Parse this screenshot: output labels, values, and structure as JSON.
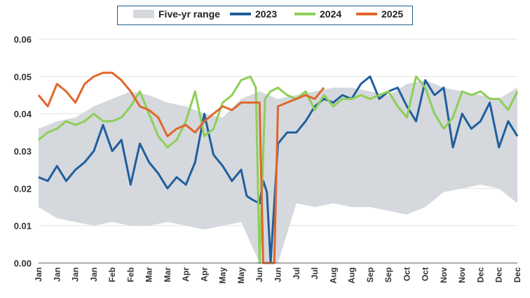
{
  "chart_data": {
    "type": "line",
    "title": "",
    "xlabel": "",
    "ylabel": "",
    "ylim": [
      0,
      0.06
    ],
    "yticks": [
      "0.00",
      "0.01",
      "0.02",
      "0.03",
      "0.04",
      "0.05",
      "0.06"
    ],
    "xticks": [
      "Jan",
      "Jan",
      "Jan",
      "Jan",
      "Feb",
      "Feb",
      "Mar",
      "Mar",
      "Apr",
      "Apr",
      "May",
      "May",
      "Jun",
      "Jun",
      "Jul",
      "Jul",
      "Aug",
      "Aug",
      "Sep",
      "Sep",
      "Oct",
      "Oct",
      "Nov",
      "Nov",
      "Dec",
      "Dec",
      "Dec"
    ],
    "legend": {
      "placement": "top",
      "entries": [
        {
          "name": "Five-yr range",
          "color": "#d5d8dd"
        },
        {
          "name": "2023",
          "color": "#1f5f9e"
        },
        {
          "name": "2024",
          "color": "#8dcf57"
        },
        {
          "name": "2025",
          "color": "#e0672a"
        }
      ]
    },
    "range_band": {
      "name": "Five-yr range",
      "x": [
        0,
        1,
        2,
        3,
        4,
        5,
        6,
        7,
        8,
        9,
        10,
        11,
        12,
        13,
        14,
        15,
        16,
        17,
        18,
        19,
        20,
        21,
        22,
        23,
        24,
        25,
        26
      ],
      "low": [
        0.015,
        0.012,
        0.011,
        0.01,
        0.011,
        0.01,
        0.01,
        0.011,
        0.01,
        0.009,
        0.01,
        0.011,
        0.0,
        0.0,
        0.016,
        0.015,
        0.016,
        0.015,
        0.015,
        0.014,
        0.013,
        0.015,
        0.019,
        0.02,
        0.021,
        0.02,
        0.016
      ],
      "high": [
        0.036,
        0.038,
        0.039,
        0.042,
        0.044,
        0.046,
        0.045,
        0.043,
        0.042,
        0.04,
        0.039,
        0.044,
        0.046,
        0.044,
        0.045,
        0.046,
        0.047,
        0.047,
        0.046,
        0.045,
        0.048,
        0.049,
        0.047,
        0.046,
        0.045,
        0.044,
        0.047
      ]
    },
    "series": [
      {
        "name": "2023",
        "x": [
          0,
          0.5,
          1,
          1.5,
          2,
          2.5,
          3,
          3.5,
          4,
          4.5,
          5,
          5.5,
          6,
          6.5,
          7,
          7.5,
          8,
          8.5,
          9,
          9.5,
          10,
          10.5,
          11,
          11.3,
          11.6,
          12,
          12.2,
          12.4,
          12.6,
          13,
          13.5,
          14,
          14.5,
          15,
          15.5,
          16,
          16.5,
          17,
          17.5,
          18,
          18.5,
          19,
          19.5,
          20,
          20.5,
          21,
          21.5,
          22,
          22.5,
          23,
          23.5,
          24,
          24.5,
          25,
          25.5,
          26
        ],
        "values": [
          0.023,
          0.022,
          0.026,
          0.022,
          0.025,
          0.027,
          0.03,
          0.037,
          0.03,
          0.033,
          0.021,
          0.032,
          0.027,
          0.024,
          0.02,
          0.023,
          0.021,
          0.027,
          0.04,
          0.029,
          0.026,
          0.022,
          0.025,
          0.018,
          0.017,
          0.016,
          0.022,
          0.019,
          0.0,
          0.032,
          0.035,
          0.035,
          0.038,
          0.042,
          0.044,
          0.043,
          0.045,
          0.044,
          0.048,
          0.05,
          0.044,
          0.046,
          0.047,
          0.042,
          0.038,
          0.049,
          0.045,
          0.047,
          0.031,
          0.04,
          0.036,
          0.038,
          0.043,
          0.031,
          0.038,
          0.034
        ]
      },
      {
        "name": "2024",
        "x": [
          0,
          0.5,
          1,
          1.5,
          2,
          2.5,
          3,
          3.5,
          4,
          4.5,
          5,
          5.5,
          6,
          6.5,
          7,
          7.5,
          8,
          8.5,
          9,
          9.5,
          10,
          10.5,
          11,
          11.5,
          11.8,
          12,
          12.3,
          12.6,
          13,
          13.5,
          14,
          14.5,
          15,
          15.5,
          16,
          16.5,
          17,
          17.5,
          18,
          18.5,
          19,
          19.5,
          20,
          20.5,
          21,
          21.5,
          22,
          22.5,
          23,
          23.5,
          24,
          24.5,
          25,
          25.5,
          26
        ],
        "values": [
          0.033,
          0.035,
          0.036,
          0.038,
          0.037,
          0.038,
          0.04,
          0.038,
          0.038,
          0.039,
          0.042,
          0.046,
          0.04,
          0.034,
          0.031,
          0.033,
          0.038,
          0.046,
          0.034,
          0.036,
          0.043,
          0.045,
          0.049,
          0.05,
          0.047,
          0.0,
          0.044,
          0.046,
          0.047,
          0.045,
          0.044,
          0.046,
          0.041,
          0.045,
          0.042,
          0.044,
          0.044,
          0.045,
          0.044,
          0.045,
          0.046,
          0.042,
          0.039,
          0.05,
          0.047,
          0.04,
          0.036,
          0.039,
          0.046,
          0.045,
          0.046,
          0.044,
          0.044,
          0.041,
          0.046
        ]
      },
      {
        "name": "2025",
        "x": [
          0,
          0.5,
          1,
          1.5,
          2,
          2.5,
          3,
          3.5,
          4,
          4.5,
          5,
          5.5,
          6,
          6.5,
          7,
          7.5,
          8,
          8.5,
          9,
          9.5,
          10,
          10.5,
          11,
          11.5,
          12,
          12.2,
          12.5,
          12.8,
          13,
          13.5,
          14,
          14.5,
          15,
          15.5
        ],
        "values": [
          0.045,
          0.042,
          0.048,
          0.046,
          0.043,
          0.048,
          0.05,
          0.051,
          0.051,
          0.049,
          0.046,
          0.042,
          0.041,
          0.039,
          0.034,
          0.036,
          0.037,
          0.035,
          0.038,
          0.04,
          0.042,
          0.041,
          0.043,
          0.043,
          0.043,
          0.0,
          0.0,
          0.0,
          0.042,
          0.043,
          0.044,
          0.045,
          0.044,
          0.047
        ]
      }
    ]
  }
}
